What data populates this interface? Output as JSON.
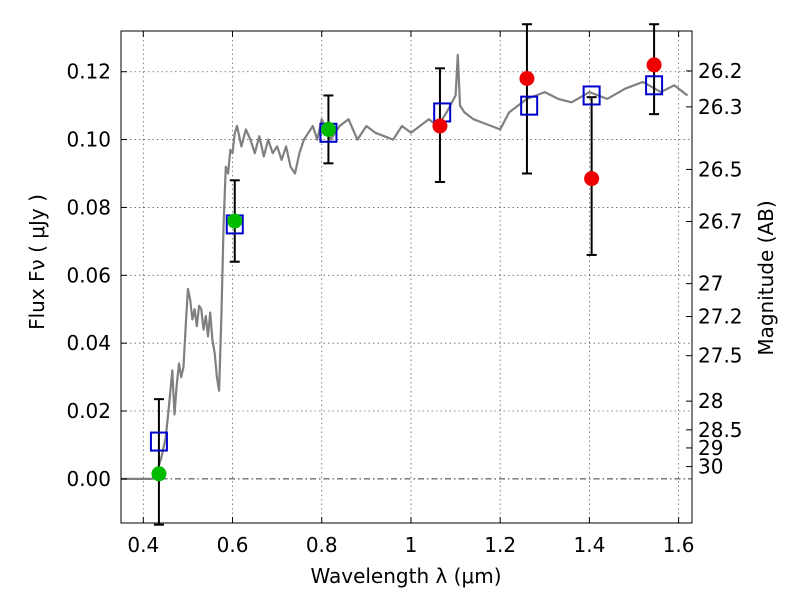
{
  "chart_data": {
    "type": "line",
    "xlabel": "Wavelength  λ (μm)",
    "ylabel_left": "Flux  Fν  ( μJy )",
    "ylabel_right": "Magnitude (AB)",
    "xlim": [
      0.35,
      1.63
    ],
    "ylim": [
      -0.013,
      0.132
    ],
    "x_ticks": [
      0.4,
      0.6,
      0.8,
      1.0,
      1.2,
      1.4,
      1.6
    ],
    "x_tick_labels": [
      "0.4",
      "0.6",
      "0.8",
      "1",
      "1.2",
      "1.4",
      "1.6"
    ],
    "y_ticks": [
      0.0,
      0.02,
      0.04,
      0.06,
      0.08,
      0.1,
      0.12
    ],
    "y_tick_labels": [
      "0.00",
      "0.02",
      "0.04",
      "0.06",
      "0.08",
      "0.10",
      "0.12"
    ],
    "magnitude_ticks": [
      26.2,
      26.3,
      26.5,
      26.7,
      27,
      27.2,
      27.5,
      28,
      28.5,
      29,
      30
    ],
    "magnitude_tick_labels": [
      "26.2",
      "26.3",
      "26.5",
      "26.7",
      "27",
      "27.2",
      "27.5",
      "28",
      "28.5",
      "29",
      "30"
    ],
    "grid": true,
    "colors": {
      "spectrum": "#808080",
      "green_points": "#00bb00",
      "red_points": "#ee0000",
      "model_squares": "#0000cc",
      "error_bars": "#000000"
    },
    "spectrum": {
      "x": [
        0.35,
        0.42,
        0.43,
        0.44,
        0.45,
        0.455,
        0.46,
        0.465,
        0.47,
        0.475,
        0.48,
        0.485,
        0.49,
        0.495,
        0.5,
        0.505,
        0.51,
        0.515,
        0.52,
        0.525,
        0.53,
        0.535,
        0.54,
        0.545,
        0.55,
        0.555,
        0.56,
        0.565,
        0.57,
        0.575,
        0.58,
        0.585,
        0.59,
        0.595,
        0.6,
        0.605,
        0.61,
        0.62,
        0.63,
        0.64,
        0.65,
        0.66,
        0.67,
        0.68,
        0.69,
        0.7,
        0.71,
        0.72,
        0.73,
        0.74,
        0.75,
        0.76,
        0.77,
        0.78,
        0.79,
        0.8,
        0.82,
        0.84,
        0.86,
        0.88,
        0.9,
        0.92,
        0.94,
        0.96,
        0.98,
        1.0,
        1.02,
        1.04,
        1.06,
        1.08,
        1.1,
        1.105,
        1.11,
        1.12,
        1.14,
        1.16,
        1.18,
        1.2,
        1.22,
        1.24,
        1.26,
        1.28,
        1.3,
        1.33,
        1.36,
        1.4,
        1.44,
        1.48,
        1.52,
        1.56,
        1.59,
        1.62
      ],
      "y": [
        0.0,
        0.0,
        0.002,
        0.006,
        0.012,
        0.018,
        0.025,
        0.032,
        0.019,
        0.028,
        0.034,
        0.03,
        0.033,
        0.045,
        0.056,
        0.053,
        0.047,
        0.05,
        0.045,
        0.051,
        0.05,
        0.044,
        0.048,
        0.042,
        0.049,
        0.041,
        0.037,
        0.03,
        0.026,
        0.048,
        0.075,
        0.092,
        0.09,
        0.097,
        0.096,
        0.102,
        0.104,
        0.098,
        0.103,
        0.1,
        0.096,
        0.101,
        0.095,
        0.1,
        0.096,
        0.098,
        0.094,
        0.098,
        0.092,
        0.09,
        0.096,
        0.1,
        0.102,
        0.104,
        0.1,
        0.106,
        0.1,
        0.104,
        0.106,
        0.1,
        0.104,
        0.102,
        0.101,
        0.1,
        0.104,
        0.102,
        0.104,
        0.106,
        0.104,
        0.108,
        0.113,
        0.125,
        0.11,
        0.108,
        0.106,
        0.105,
        0.104,
        0.103,
        0.108,
        0.11,
        0.112,
        0.113,
        0.114,
        0.112,
        0.111,
        0.114,
        0.112,
        0.115,
        0.117,
        0.114,
        0.116,
        0.113
      ]
    },
    "green_points": [
      {
        "x": 0.435,
        "y": 0.0015,
        "err_low": 0.015,
        "err_high": 0.022
      },
      {
        "x": 0.605,
        "y": 0.076,
        "err_low": 0.012,
        "err_high": 0.012
      },
      {
        "x": 0.815,
        "y": 0.103,
        "err_low": 0.01,
        "err_high": 0.01
      }
    ],
    "red_points": [
      {
        "x": 1.065,
        "y": 0.104,
        "err_low": 0.0165,
        "err_high": 0.017
      },
      {
        "x": 1.26,
        "y": 0.118,
        "err_low": 0.028,
        "err_high": 0.016
      },
      {
        "x": 1.405,
        "y": 0.0885,
        "err_low": 0.0225,
        "err_high": 0.024
      },
      {
        "x": 1.545,
        "y": 0.122,
        "err_low": 0.0145,
        "err_high": 0.012
      }
    ],
    "model_squares": [
      {
        "x": 0.435,
        "y": 0.011
      },
      {
        "x": 0.605,
        "y": 0.075
      },
      {
        "x": 0.815,
        "y": 0.102
      },
      {
        "x": 1.07,
        "y": 0.108
      },
      {
        "x": 1.265,
        "y": 0.11
      },
      {
        "x": 1.405,
        "y": 0.113
      },
      {
        "x": 1.545,
        "y": 0.116
      }
    ]
  }
}
